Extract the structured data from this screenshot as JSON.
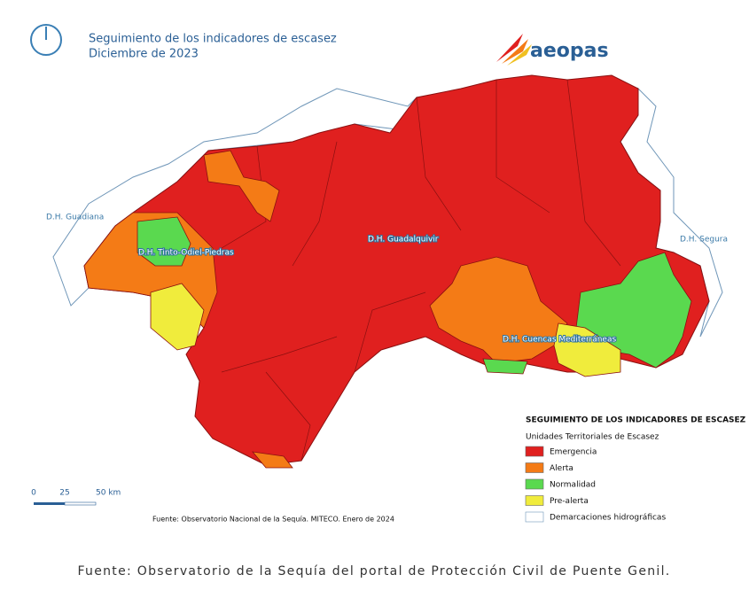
{
  "header": {
    "title": "Seguimiento de los indicadores de escasez",
    "subtitle": "Diciembre de 2023",
    "logo": "aeopas"
  },
  "map": {
    "labels": {
      "guadiana": "D.H. Guadiana",
      "segura": "D.H. Segura",
      "guadalquivir": "D.H. Guadalquivir",
      "tinto": "D.H. Tinto-Odiel-Piedras",
      "mediterraneas": "D.H. Cuencas Mediterráneas"
    }
  },
  "legend": {
    "title": "SEGUIMIENTO DE LOS INDICADORES DE ESCASEZ",
    "subtitle": "Unidades Territoriales de Escasez",
    "items": [
      {
        "label": "Emergencia",
        "color": "#e0201f"
      },
      {
        "label": "Alerta",
        "color": "#f47b16"
      },
      {
        "label": "Normalidad",
        "color": "#5ad94f"
      },
      {
        "label": "Pre-alerta",
        "color": "#f0ec3c"
      },
      {
        "label": "Demarcaciones hidrográficas",
        "color": "#ffffff"
      }
    ]
  },
  "scale_bar": [
    "0",
    "25",
    "50 km"
  ],
  "source": "Fuente: Observatorio Nacional de la Sequía. MITECO. Enero de 2024",
  "caption": "Fuente: Observatorio de la Sequía del portal de Protección Civil de Puente Genil."
}
